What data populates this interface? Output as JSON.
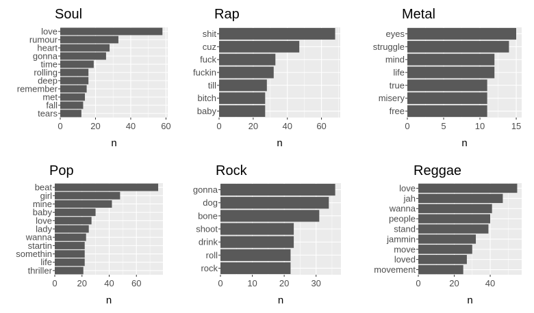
{
  "chart_data": [
    {
      "type": "bar",
      "orientation": "horizontal",
      "title": "Soul",
      "categories": [
        "love",
        "rumour",
        "heart",
        "gonna",
        "time",
        "rolling",
        "deep",
        "remember",
        "met",
        "fall",
        "tears"
      ],
      "values": [
        58,
        33,
        28,
        26,
        19,
        16,
        16,
        15,
        14,
        13,
        12
      ],
      "xlabel": "n",
      "xlim": [
        0,
        61
      ],
      "xticks": [
        0,
        20,
        40,
        60
      ],
      "grid": true
    },
    {
      "type": "bar",
      "orientation": "horizontal",
      "title": "Rap",
      "categories": [
        "shit",
        "cuz",
        "fuck",
        "fuckin",
        "till",
        "bitch",
        "baby"
      ],
      "values": [
        68,
        47,
        33,
        32,
        28,
        27,
        27
      ],
      "xlabel": "n",
      "xlim": [
        0,
        71
      ],
      "xticks": [
        0,
        20,
        40,
        60
      ],
      "grid": true
    },
    {
      "type": "bar",
      "orientation": "horizontal",
      "title": "Metal",
      "categories": [
        "eyes",
        "struggle",
        "mind",
        "life",
        "true",
        "misery",
        "free"
      ],
      "values": [
        15,
        14,
        12,
        12,
        11,
        11,
        11
      ],
      "xlabel": "n",
      "xlim": [
        0,
        15.75
      ],
      "xticks": [
        0,
        5,
        10,
        15
      ],
      "grid": true
    },
    {
      "type": "bar",
      "orientation": "horizontal",
      "title": "Pop",
      "categories": [
        "beat",
        "girl",
        "mine",
        "baby",
        "love",
        "lady",
        "wanna",
        "startin",
        "somethin",
        "life",
        "thriller"
      ],
      "values": [
        76,
        48,
        42,
        30,
        27,
        25,
        23,
        22,
        22,
        22,
        21
      ],
      "xlabel": "n",
      "xlim": [
        0,
        79.5
      ],
      "xticks": [
        0,
        20,
        40,
        60
      ],
      "grid": true
    },
    {
      "type": "bar",
      "orientation": "horizontal",
      "title": "Rock",
      "categories": [
        "gonna",
        "dog",
        "bone",
        "shoot",
        "drink",
        "roll",
        "rock"
      ],
      "values": [
        36,
        34,
        31,
        23,
        23,
        22,
        22
      ],
      "xlabel": "n",
      "xlim": [
        0,
        37.8
      ],
      "xticks": [
        0,
        10,
        20,
        30
      ],
      "grid": true
    },
    {
      "type": "bar",
      "orientation": "horizontal",
      "title": "Reggae",
      "categories": [
        "love",
        "jah",
        "wanna",
        "people",
        "stand",
        "jammin",
        "move",
        "loved",
        "movement"
      ],
      "values": [
        55,
        47,
        41,
        40,
        39,
        32,
        30,
        27,
        25
      ],
      "xlabel": "n",
      "xlim": [
        0,
        57.5
      ],
      "xticks": [
        0,
        20,
        40
      ],
      "grid": true
    }
  ],
  "colors": {
    "bar": "#595959",
    "panel_background": "#ebebeb",
    "grid": "#ffffff",
    "text": "#4d4d4d"
  }
}
